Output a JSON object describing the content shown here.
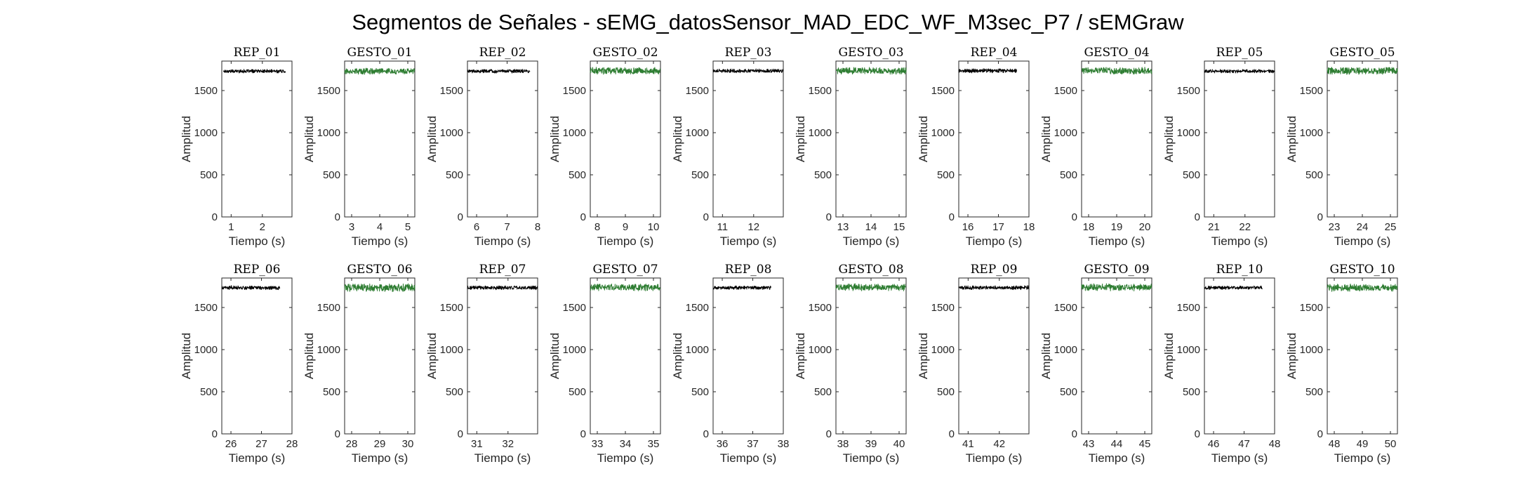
{
  "figure": {
    "title": "Segmentos de Señales - sEMG_datosSensor_MAD_EDC_WF_M3sec_P7 / sEMGraw"
  },
  "colors": {
    "rep": "#000000",
    "gesto": "#2e7d32"
  },
  "chart_data": [
    {
      "type": "line",
      "title": "REP_01",
      "kind": "rep",
      "xlabel": "Tiempo (s)",
      "ylabel": "Amplitud",
      "xlim": [
        0.7,
        2.95
      ],
      "ylim": [
        0,
        1850
      ],
      "xticks": [
        1,
        2
      ],
      "yticks": [
        0,
        500,
        1000,
        1500
      ],
      "series": [
        {
          "name": "REP_01",
          "x_range": [
            0.75,
            2.75
          ],
          "level": 1730,
          "amplitude": 18
        }
      ]
    },
    {
      "type": "line",
      "title": "GESTO_01",
      "kind": "gesto",
      "xlabel": "Tiempo (s)",
      "ylabel": "Amplitud",
      "xlim": [
        2.75,
        5.25
      ],
      "ylim": [
        0,
        1850
      ],
      "xticks": [
        3,
        4,
        5
      ],
      "yticks": [
        0,
        500,
        1000,
        1500
      ],
      "series": [
        {
          "name": "GESTO_01",
          "x_range": [
            2.75,
            5.25
          ],
          "level": 1730,
          "amplitude": 30
        }
      ]
    },
    {
      "type": "line",
      "title": "REP_02",
      "kind": "rep",
      "xlabel": "Tiempo (s)",
      "ylabel": "Amplitud",
      "xlim": [
        5.7,
        8.0
      ],
      "ylim": [
        0,
        1850
      ],
      "xticks": [
        6,
        7,
        8
      ],
      "yticks": [
        0,
        500,
        1000,
        1500
      ],
      "series": [
        {
          "name": "REP_02",
          "x_range": [
            5.7,
            7.75
          ],
          "level": 1730,
          "amplitude": 18
        }
      ]
    },
    {
      "type": "line",
      "title": "GESTO_02",
      "kind": "gesto",
      "xlabel": "Tiempo (s)",
      "ylabel": "Amplitud",
      "xlim": [
        7.75,
        10.25
      ],
      "ylim": [
        0,
        1850
      ],
      "xticks": [
        8,
        9,
        10
      ],
      "yticks": [
        0,
        500,
        1000,
        1500
      ],
      "series": [
        {
          "name": "GESTO_02",
          "x_range": [
            7.75,
            10.25
          ],
          "level": 1735,
          "amplitude": 35
        }
      ]
    },
    {
      "type": "line",
      "title": "REP_03",
      "kind": "rep",
      "xlabel": "Tiempo (s)",
      "ylabel": "Amplitud",
      "xlim": [
        10.7,
        12.95
      ],
      "ylim": [
        0,
        1850
      ],
      "xticks": [
        11,
        12
      ],
      "yticks": [
        0,
        500,
        1000,
        1500
      ],
      "series": [
        {
          "name": "REP_03",
          "x_range": [
            10.7,
            12.95
          ],
          "level": 1735,
          "amplitude": 20
        }
      ]
    },
    {
      "type": "line",
      "title": "GESTO_03",
      "kind": "gesto",
      "xlabel": "Tiempo (s)",
      "ylabel": "Amplitud",
      "xlim": [
        12.75,
        15.25
      ],
      "ylim": [
        0,
        1850
      ],
      "xticks": [
        13,
        14,
        15
      ],
      "yticks": [
        0,
        500,
        1000,
        1500
      ],
      "series": [
        {
          "name": "GESTO_03",
          "x_range": [
            12.75,
            15.25
          ],
          "level": 1735,
          "amplitude": 35
        }
      ]
    },
    {
      "type": "line",
      "title": "REP_04",
      "kind": "rep",
      "xlabel": "Tiempo (s)",
      "ylabel": "Amplitud",
      "xlim": [
        15.7,
        18.0
      ],
      "ylim": [
        0,
        1850
      ],
      "xticks": [
        16,
        17,
        18
      ],
      "yticks": [
        0,
        500,
        1000,
        1500
      ],
      "series": [
        {
          "name": "REP_04",
          "x_range": [
            15.7,
            17.6
          ],
          "level": 1735,
          "amplitude": 20
        }
      ]
    },
    {
      "type": "line",
      "title": "GESTO_04",
      "kind": "gesto",
      "xlabel": "Tiempo (s)",
      "ylabel": "Amplitud",
      "xlim": [
        17.75,
        20.25
      ],
      "ylim": [
        0,
        1850
      ],
      "xticks": [
        18,
        19,
        20
      ],
      "yticks": [
        0,
        500,
        1000,
        1500
      ],
      "series": [
        {
          "name": "GESTO_04",
          "x_range": [
            17.75,
            20.25
          ],
          "level": 1735,
          "amplitude": 35
        }
      ]
    },
    {
      "type": "line",
      "title": "REP_05",
      "kind": "rep",
      "xlabel": "Tiempo (s)",
      "ylabel": "Amplitud",
      "xlim": [
        20.7,
        22.95
      ],
      "ylim": [
        0,
        1850
      ],
      "xticks": [
        21,
        22
      ],
      "yticks": [
        0,
        500,
        1000,
        1500
      ],
      "series": [
        {
          "name": "REP_05",
          "x_range": [
            20.7,
            22.95
          ],
          "level": 1730,
          "amplitude": 18
        }
      ]
    },
    {
      "type": "line",
      "title": "GESTO_05",
      "kind": "gesto",
      "xlabel": "Tiempo (s)",
      "ylabel": "Amplitud",
      "xlim": [
        22.75,
        25.25
      ],
      "ylim": [
        0,
        1850
      ],
      "xticks": [
        23,
        24,
        25
      ],
      "yticks": [
        0,
        500,
        1000,
        1500
      ],
      "series": [
        {
          "name": "GESTO_05",
          "x_range": [
            22.75,
            25.25
          ],
          "level": 1735,
          "amplitude": 35
        }
      ]
    },
    {
      "type": "line",
      "title": "REP_06",
      "kind": "rep",
      "xlabel": "Tiempo (s)",
      "ylabel": "Amplitud",
      "xlim": [
        25.7,
        28.0
      ],
      "ylim": [
        0,
        1850
      ],
      "xticks": [
        26,
        27,
        28
      ],
      "yticks": [
        0,
        500,
        1000,
        1500
      ],
      "series": [
        {
          "name": "REP_06",
          "x_range": [
            25.7,
            27.6
          ],
          "level": 1735,
          "amplitude": 20
        }
      ]
    },
    {
      "type": "line",
      "title": "GESTO_06",
      "kind": "gesto",
      "xlabel": "Tiempo (s)",
      "ylabel": "Amplitud",
      "xlim": [
        27.75,
        30.25
      ],
      "ylim": [
        0,
        1850
      ],
      "xticks": [
        28,
        29,
        30
      ],
      "yticks": [
        0,
        500,
        1000,
        1500
      ],
      "series": [
        {
          "name": "GESTO_06",
          "x_range": [
            27.75,
            30.25
          ],
          "level": 1735,
          "amplitude": 38
        }
      ]
    },
    {
      "type": "line",
      "title": "REP_07",
      "kind": "rep",
      "xlabel": "Tiempo (s)",
      "ylabel": "Amplitud",
      "xlim": [
        30.7,
        32.95
      ],
      "ylim": [
        0,
        1850
      ],
      "xticks": [
        31,
        32
      ],
      "yticks": [
        0,
        500,
        1000,
        1500
      ],
      "series": [
        {
          "name": "REP_07",
          "x_range": [
            30.7,
            32.95
          ],
          "level": 1735,
          "amplitude": 20
        }
      ]
    },
    {
      "type": "line",
      "title": "GESTO_07",
      "kind": "gesto",
      "xlabel": "Tiempo (s)",
      "ylabel": "Amplitud",
      "xlim": [
        32.75,
        35.25
      ],
      "ylim": [
        0,
        1850
      ],
      "xticks": [
        33,
        34,
        35
      ],
      "yticks": [
        0,
        500,
        1000,
        1500
      ],
      "series": [
        {
          "name": "GESTO_07",
          "x_range": [
            32.75,
            35.25
          ],
          "level": 1740,
          "amplitude": 35
        }
      ]
    },
    {
      "type": "line",
      "title": "REP_08",
      "kind": "rep",
      "xlabel": "Tiempo (s)",
      "ylabel": "Amplitud",
      "xlim": [
        35.7,
        38.0
      ],
      "ylim": [
        0,
        1850
      ],
      "xticks": [
        36,
        37,
        38
      ],
      "yticks": [
        0,
        500,
        1000,
        1500
      ],
      "series": [
        {
          "name": "REP_08",
          "x_range": [
            35.7,
            37.6
          ],
          "level": 1735,
          "amplitude": 18
        }
      ]
    },
    {
      "type": "line",
      "title": "GESTO_08",
      "kind": "gesto",
      "xlabel": "Tiempo (s)",
      "ylabel": "Amplitud",
      "xlim": [
        37.75,
        40.25
      ],
      "ylim": [
        0,
        1850
      ],
      "xticks": [
        38,
        39,
        40
      ],
      "yticks": [
        0,
        500,
        1000,
        1500
      ],
      "series": [
        {
          "name": "GESTO_08",
          "x_range": [
            37.75,
            40.25
          ],
          "level": 1740,
          "amplitude": 35
        }
      ]
    },
    {
      "type": "line",
      "title": "REP_09",
      "kind": "rep",
      "xlabel": "Tiempo (s)",
      "ylabel": "Amplitud",
      "xlim": [
        40.7,
        42.95
      ],
      "ylim": [
        0,
        1850
      ],
      "xticks": [
        41,
        42
      ],
      "yticks": [
        0,
        500,
        1000,
        1500
      ],
      "series": [
        {
          "name": "REP_09",
          "x_range": [
            40.7,
            42.95
          ],
          "level": 1735,
          "amplitude": 20
        }
      ]
    },
    {
      "type": "line",
      "title": "GESTO_09",
      "kind": "gesto",
      "xlabel": "Tiempo (s)",
      "ylabel": "Amplitud",
      "xlim": [
        42.75,
        45.25
      ],
      "ylim": [
        0,
        1850
      ],
      "xticks": [
        43,
        44,
        45
      ],
      "yticks": [
        0,
        500,
        1000,
        1500
      ],
      "series": [
        {
          "name": "GESTO_09",
          "x_range": [
            42.75,
            45.25
          ],
          "level": 1740,
          "amplitude": 35
        }
      ]
    },
    {
      "type": "line",
      "title": "REP_10",
      "kind": "rep",
      "xlabel": "Tiempo (s)",
      "ylabel": "Amplitud",
      "xlim": [
        45.7,
        48.0
      ],
      "ylim": [
        0,
        1850
      ],
      "xticks": [
        46,
        47,
        48
      ],
      "yticks": [
        0,
        500,
        1000,
        1500
      ],
      "series": [
        {
          "name": "REP_10",
          "x_range": [
            45.7,
            47.6
          ],
          "level": 1735,
          "amplitude": 18
        }
      ]
    },
    {
      "type": "line",
      "title": "GESTO_10",
      "kind": "gesto",
      "xlabel": "Tiempo (s)",
      "ylabel": "Amplitud",
      "xlim": [
        47.75,
        50.25
      ],
      "ylim": [
        0,
        1850
      ],
      "xticks": [
        48,
        49,
        50
      ],
      "yticks": [
        0,
        500,
        1000,
        1500
      ],
      "series": [
        {
          "name": "GESTO_10",
          "x_range": [
            47.75,
            50.25
          ],
          "level": 1735,
          "amplitude": 38
        }
      ]
    }
  ]
}
